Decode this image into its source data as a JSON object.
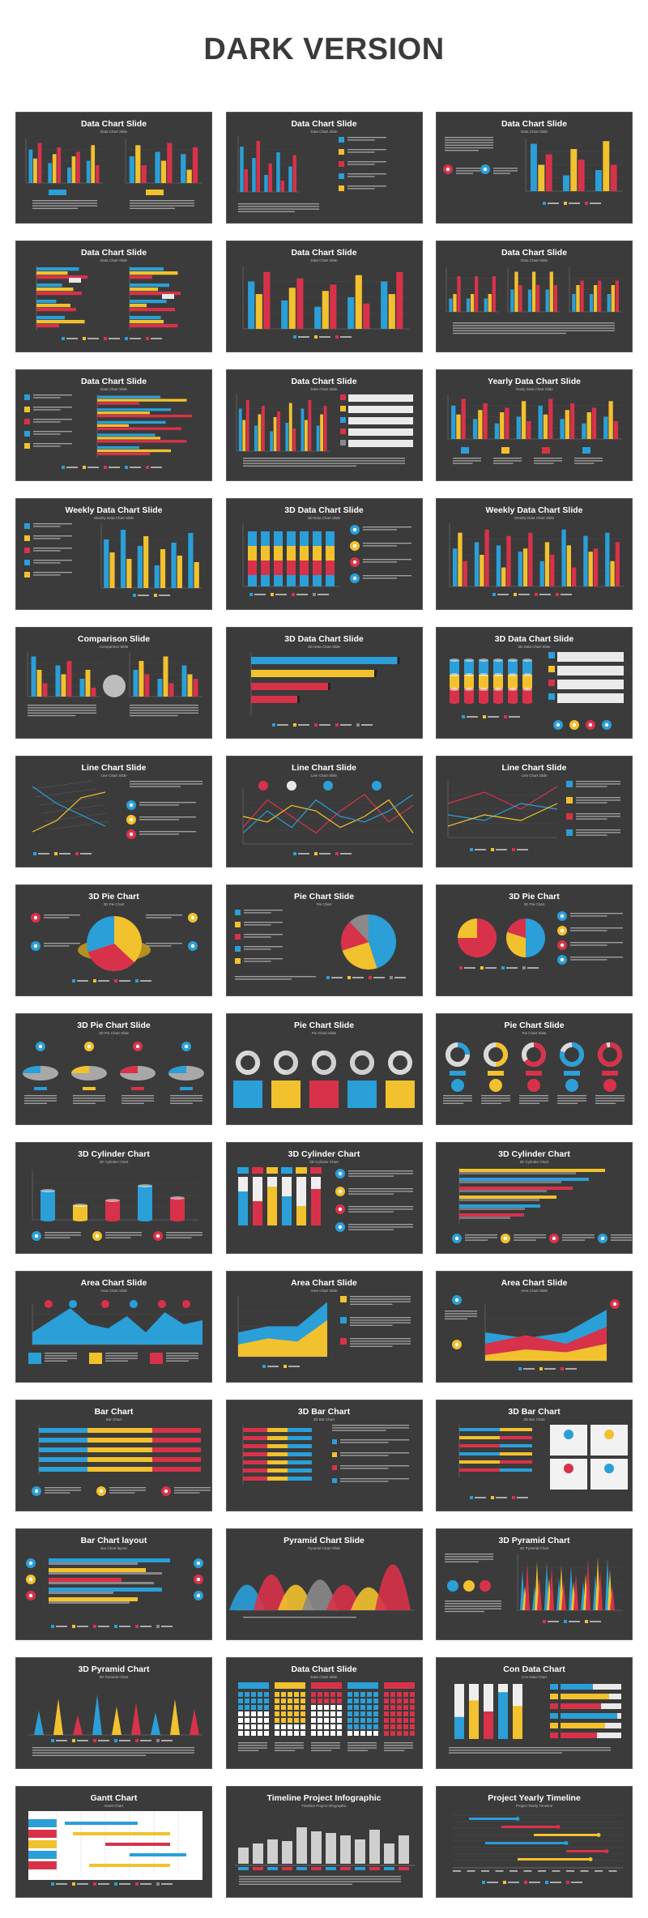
{
  "page": {
    "heading": "DARK VERSION"
  },
  "colors": {
    "blue": "#2a9fd8",
    "yellow": "#f2c12e",
    "red": "#d8324a",
    "slide_bg": "#3b3b3b",
    "heading": "#3a3a3a"
  },
  "slides": [
    {
      "title": "Data Chart Slide",
      "subtitle": "Data Chart Slide",
      "kind": "bars-pair"
    },
    {
      "title": "Data Chart Slide",
      "subtitle": "Data Chart Slide",
      "kind": "bars-checklist"
    },
    {
      "title": "Data Chart Slide",
      "subtitle": "Data Chart Slide",
      "kind": "bars-text"
    },
    {
      "title": "Data Chart Slide",
      "subtitle": "Data Chart Slide",
      "kind": "hbars-pair"
    },
    {
      "title": "Data Chart Slide",
      "subtitle": "Data Chart Slide",
      "kind": "bars-grouped"
    },
    {
      "title": "Data Chart Slide",
      "subtitle": "Data Chart Slide",
      "kind": "bars-triple"
    },
    {
      "title": "Data Chart Slide",
      "subtitle": "Data Chart Slide",
      "kind": "hbars-checklist"
    },
    {
      "title": "Data Chart Slide",
      "subtitle": "Data Chart Slide",
      "kind": "bars-boxes"
    },
    {
      "title": "Yearly Data Chart Slide",
      "subtitle": "Yearly Data Chart Slide",
      "kind": "bars-icons"
    },
    {
      "title": "Weekly Data Chart Slide",
      "subtitle": "Weekly Data Chart Slide",
      "kind": "bars-checklist-left"
    },
    {
      "title": "3D Data Chart Slide",
      "subtitle": "3D Data Chart Slide",
      "kind": "stacked-3d"
    },
    {
      "title": "Weekly Data Chart Slide",
      "subtitle": "Weekly Data Chart Slide",
      "kind": "bars-wide"
    },
    {
      "title": "Comparison Slide",
      "subtitle": "Comparison Slide",
      "kind": "comparison"
    },
    {
      "title": "3D Data Chart Slide",
      "subtitle": "3D Data Chart Slide",
      "kind": "hbars-3d"
    },
    {
      "title": "3D Data Chart Slide",
      "subtitle": "3D Data Chart Slide",
      "kind": "cylinders-boxes"
    },
    {
      "title": "Line Chart Slide",
      "subtitle": "Line Chart Slide",
      "kind": "line-3d"
    },
    {
      "title": "Line Chart Slide",
      "subtitle": "Line Chart Slide",
      "kind": "line-pins"
    },
    {
      "title": "Line Chart Slide",
      "subtitle": "Line Chart Slide",
      "kind": "line-icons"
    },
    {
      "title": "3D Pie Chart",
      "subtitle": "3D Pie Chart",
      "kind": "pie-3d"
    },
    {
      "title": "Pie Chart Slide",
      "subtitle": "Pie Chart",
      "kind": "pie-donut"
    },
    {
      "title": "3D Pie Chart",
      "subtitle": "3D Pie Chart",
      "kind": "pie-pair"
    },
    {
      "title": "3D Pie Chart Slide",
      "subtitle": "3D Pie Chart Slide",
      "kind": "pie-four"
    },
    {
      "title": "Pie Chart Slide",
      "subtitle": "Pie Chart Slide",
      "kind": "donut-five"
    },
    {
      "title": "Pie Chart Slide",
      "subtitle": "Pie Chart Slide",
      "kind": "donut-five-icons"
    },
    {
      "title": "3D Cylinder Chart",
      "subtitle": "3D Cylinder Chart",
      "kind": "cyl-bars"
    },
    {
      "title": "3D Cylinder Chart",
      "subtitle": "3D Cylinder Chart",
      "kind": "cyl-tubes"
    },
    {
      "title": "3D Cylinder Chart",
      "subtitle": "3D Cylinder Chart",
      "kind": "cyl-hbars"
    },
    {
      "title": "Area Chart Slide",
      "subtitle": "Area Chart Slide",
      "kind": "area-pins"
    },
    {
      "title": "Area Chart Slide",
      "subtitle": "Area Chart Slide",
      "kind": "area-text"
    },
    {
      "title": "Area Chart Slide",
      "subtitle": "Area Chart Slide",
      "kind": "area-icons"
    },
    {
      "title": "Bar Chart",
      "subtitle": "Bar Chart",
      "kind": "hbar-stacked"
    },
    {
      "title": "3D Bar Chart",
      "subtitle": "3D Bar Chart",
      "kind": "hbar-3d-text"
    },
    {
      "title": "3D Bar Chart",
      "subtitle": "3D Bar Chart",
      "kind": "hbar-3d-cards"
    },
    {
      "title": "Bar Chart layout",
      "subtitle": "Bar Chart layout",
      "kind": "hbar-icons"
    },
    {
      "title": "Pyramid Chart Slide",
      "subtitle": "Pyramid Chart Slide",
      "kind": "pyramid-curves"
    },
    {
      "title": "3D Pyramid Chart",
      "subtitle": "3D Pyramid Chart",
      "kind": "pyramid-spikes"
    },
    {
      "title": "3D Pyramid Chart",
      "subtitle": "3D Pyramid Chart",
      "kind": "pyramid-row"
    },
    {
      "title": "Data Chart Slide",
      "subtitle": "Data Chart Slide",
      "kind": "waffle"
    },
    {
      "title": "Con Data Chart",
      "subtitle": "Con Data Chart",
      "kind": "con-tubes"
    },
    {
      "title": "Gantt Chart",
      "subtitle": "Gantt Chart",
      "kind": "gantt"
    },
    {
      "title": "Timeline Project Infographic",
      "subtitle": "Timeline Project Infographic",
      "kind": "timeline-bars"
    },
    {
      "title": "Project Yearly Timeline",
      "subtitle": "Project Yearly Timeline",
      "kind": "timeline-yearly"
    }
  ]
}
